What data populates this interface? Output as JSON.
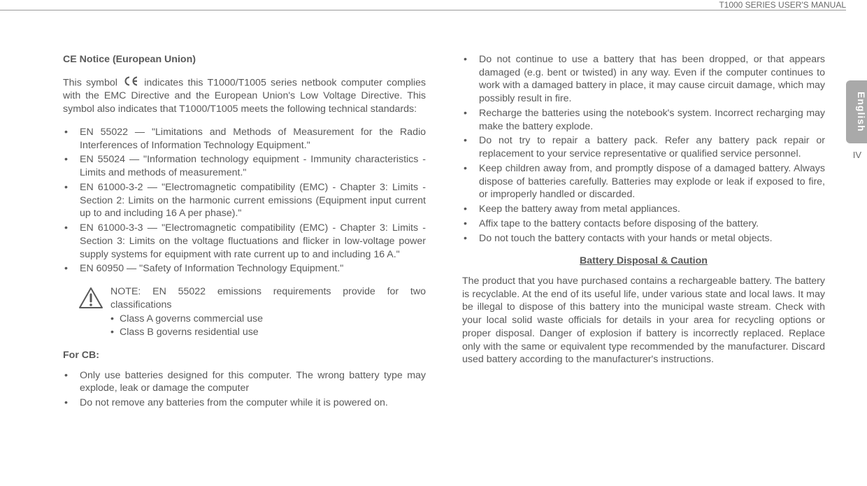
{
  "header": {
    "manual_title": "T1000 SERIES USER'S MANUAL"
  },
  "tab": {
    "language": "English",
    "page_number": "IV"
  },
  "col1": {
    "heading": "CE Notice (European Union)",
    "intro_pre": "This symbol ",
    "intro_post": " indicates this T1000/T1005 series netbook computer complies with the EMC Directive and the European Union's Low Voltage Directive. This symbol also indicates that T1000/T1005 meets the following technical standards:",
    "standards": [
      "EN 55022 — \"Limitations and Methods of Measurement for the Radio Interferences of Information Technology Equipment.\"",
      "EN 55024 — \"Information technology equipment - Immunity characteristics - Limits and methods of measurement.\"",
      "EN 61000-3-2 — \"Electromagnetic compatibility (EMC) - Chapter 3: Limits - Section 2: Limits on the harmonic current emissions (Equipment input current up to and including 16 A per phase).\"",
      "EN 61000-3-3 — \"Electromagnetic compatibility (EMC) - Chapter 3: Limits - Section 3: Limits on the voltage fluctuations and flicker in low-voltage power supply systems for equipment with rate current up to and including 16 A.\"",
      "EN 60950 — \"Safety of Information Technology Equipment.\""
    ],
    "note_lead": "NOTE: EN 55022 emissions requirements provide for two classifications",
    "note_sub": [
      "Class A governs commercial use",
      "Class B governs residential use"
    ],
    "cb_heading": "For CB:",
    "cb_items": [
      "Only use batteries designed for this computer. The wrong battery type may explode, leak or damage the computer",
      "Do not remove any batteries from the computer while it is powered on."
    ]
  },
  "col2": {
    "top_items": [
      "Do not continue to use a battery that has been dropped, or that appears damaged (e.g. bent or twisted) in any way. Even if the computer continues to work with a damaged battery in place, it may cause circuit damage, which may possibly result in fire.",
      "Recharge the batteries using the notebook's system. Incorrect recharging may make the battery explode.",
      "Do not try to repair a battery pack. Refer any battery pack repair or replacement to your service representative or qualified service personnel.",
      "Keep children away from, and promptly dispose of a damaged battery. Always dispose of batteries carefully. Batteries may explode or leak if exposed to fire, or improperly handled or discarded.",
      "Keep the battery away from metal appliances.",
      "Affix tape to the battery contacts before disposing of the battery.",
      "Do not touch the battery contacts with your hands or metal objects."
    ],
    "disposal_heading": "Battery Disposal & Caution",
    "disposal_body": "The product that you have purchased contains a rechargeable battery. The battery is recyclable. At the end of its useful life, under various state and local laws. It may be illegal to dispose of this battery into the municipal waste stream. Check with your local solid waste officials for details in your area for recycling options or proper disposal. Danger of explosion if battery is incorrectly replaced.  Replace only with the same or equivalent type recommended by the manufacturer. Discard used battery according to the manufacturer's instructions."
  },
  "colors": {
    "text": "#595959",
    "rule": "#9a9a9a",
    "tab_bg": "#a9a9a9",
    "tab_text": "#ffffff",
    "background": "#ffffff"
  }
}
